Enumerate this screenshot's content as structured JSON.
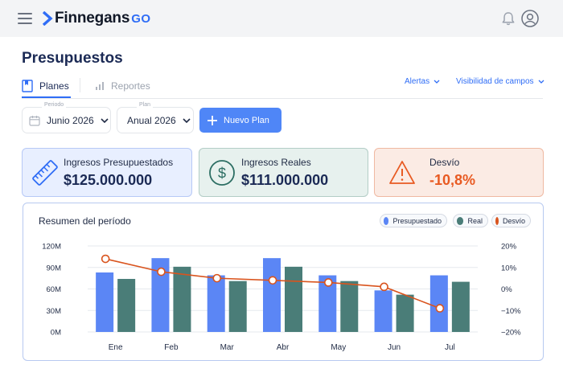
{
  "brand": {
    "name": "Finnegans",
    "suffix": "GO",
    "accent": "#2f6df6"
  },
  "header": {
    "icons": [
      "menu-icon",
      "bell-icon",
      "user-avatar-icon"
    ]
  },
  "page": {
    "title": "Presupuestos"
  },
  "tabs": [
    {
      "label": "Planes",
      "icon": "planes-icon",
      "active": true
    },
    {
      "label": "Reportes",
      "icon": "bar-chart-icon",
      "active": false
    }
  ],
  "toolbar_links": {
    "alertas": "Alertas",
    "visibilidad": "Visibilidad de campos"
  },
  "filters": {
    "periodo": {
      "label": "Periodo",
      "value": "Junio 2026"
    },
    "plan": {
      "label": "Plan",
      "value": "Anual 2026"
    }
  },
  "actions": {
    "nuevo_plan": "Nuevo Plan"
  },
  "kpis": [
    {
      "label": "Ingresos Presupuestados",
      "value": "$125.000.000",
      "icon": "ruler-icon",
      "color": "#2f6df6"
    },
    {
      "label": "Ingresos Reales",
      "value": "$111.000.000",
      "icon": "dollar-icon",
      "color": "#2c6e63"
    },
    {
      "label": "Desvío",
      "value": "-10,8%",
      "icon": "warning-icon",
      "color": "#e85a22"
    }
  ],
  "chart": {
    "title": "Resumen del período",
    "legend": [
      "Presupuestado",
      "Real",
      "Desvío"
    ],
    "colors": {
      "presupuestado": "#5b86f5",
      "real": "#4a7d78",
      "desvio": "#d9541e"
    }
  },
  "chart_data": {
    "type": "bar",
    "categories": [
      "Ene",
      "Feb",
      "Mar",
      "Abr",
      "May",
      "Jun",
      "Jul"
    ],
    "series": [
      {
        "name": "Presupuestado",
        "axis": "left",
        "type": "bar",
        "values": [
          83,
          103,
          79,
          103,
          79,
          58,
          79
        ]
      },
      {
        "name": "Real",
        "axis": "left",
        "type": "bar",
        "values": [
          74,
          91,
          71,
          91,
          71,
          52,
          70
        ]
      },
      {
        "name": "Desvío",
        "axis": "right",
        "type": "line",
        "values": [
          14,
          8,
          5,
          4,
          3,
          1,
          -9
        ]
      }
    ],
    "y_left": {
      "ticks": [
        "120M",
        "90M",
        "60M",
        "30M",
        "0M"
      ],
      "ylim": [
        0,
        120
      ],
      "unit": "M"
    },
    "y_right": {
      "ticks": [
        "20%",
        "10%",
        "0%",
        "−10%",
        "−20%"
      ],
      "ylim": [
        -20,
        20
      ],
      "unit": "%"
    },
    "grid": true,
    "legend_position": "top-right"
  }
}
